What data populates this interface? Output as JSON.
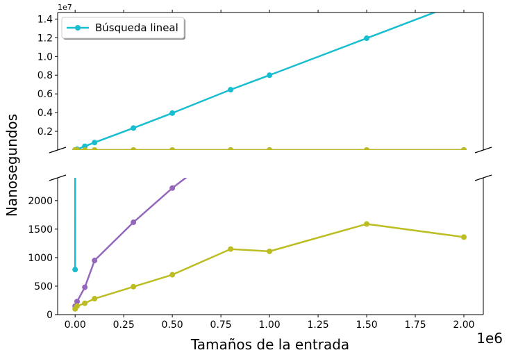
{
  "chart_data": {
    "type": "line",
    "layout": "broken-y-axis",
    "xlabel": "Tamaños de la entrada",
    "ylabel": "Nanosegundos",
    "x_exponent_label": "1e6",
    "y_top_exponent_label": "1e7",
    "x_ticks": [
      0,
      250000,
      500000,
      750000,
      1000000,
      1250000,
      1500000,
      1750000,
      2000000
    ],
    "x_tick_labels": [
      "0.00",
      "0.25",
      "0.50",
      "0.75",
      "1.00",
      "1.25",
      "1.50",
      "1.75",
      "2.00"
    ],
    "xlim": [
      -90000,
      2100000
    ],
    "top_panel": {
      "ylim": [
        0,
        14700000
      ],
      "y_ticks": [
        2000000,
        4000000,
        6000000,
        8000000,
        10000000,
        12000000,
        14000000
      ],
      "y_tick_labels": [
        "0.2",
        "0.4",
        "0.6",
        "0.8",
        "1.0",
        "1.2",
        "1.4"
      ]
    },
    "bottom_panel": {
      "ylim": [
        0,
        2400
      ],
      "y_ticks": [
        0,
        500,
        1000,
        1500,
        2000
      ],
      "y_tick_labels": [
        "0",
        "500",
        "1000",
        "1500",
        "2000"
      ]
    },
    "legend": {
      "position": "top-left",
      "entries": [
        "Búsqueda lineal"
      ]
    },
    "series": [
      {
        "name": "Búsqueda lineal",
        "color": "#17becf",
        "x": [
          0,
          10000,
          50000,
          100000,
          300000,
          500000,
          800000,
          1000000,
          1500000,
          2000000
        ],
        "y": [
          790,
          80000,
          400000,
          800000,
          2350000,
          3950000,
          6450000,
          8000000,
          11950000,
          15900000
        ]
      },
      {
        "color": "#9467bd",
        "x": [
          0,
          10000,
          50000,
          100000,
          300000,
          500000,
          800000,
          1000000,
          1500000,
          2000000
        ],
        "y": [
          150,
          230,
          480,
          950,
          1620,
          2220,
          3000,
          3500,
          4600,
          5500
        ]
      },
      {
        "color": "#bcbd22",
        "x": [
          0,
          10000,
          50000,
          100000,
          300000,
          500000,
          800000,
          1000000,
          1500000,
          2000000
        ],
        "y": [
          100,
          150,
          200,
          280,
          490,
          700,
          1150,
          1110,
          1590,
          1360
        ]
      }
    ]
  }
}
